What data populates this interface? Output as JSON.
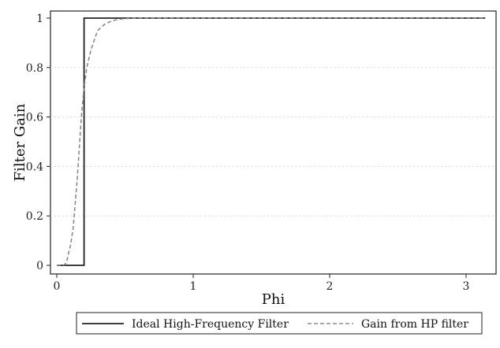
{
  "chart_data": {
    "type": "line",
    "xlabel": "Phi",
    "ylabel": "Filter Gain",
    "xlim": [
      0,
      3.14
    ],
    "ylim": [
      0,
      1
    ],
    "xticks": [
      "0",
      "1",
      "2",
      "3"
    ],
    "yticks": [
      "0",
      "0.2",
      "0.4",
      "0.6",
      "0.8",
      "1"
    ],
    "grid": "horizontal",
    "legend_position": "bottom",
    "series": [
      {
        "name": "Ideal High-Frequency Filter",
        "style": "solid",
        "color": "#222222",
        "x": [
          0.0,
          0.19,
          0.19,
          0.2,
          0.2,
          3.14
        ],
        "y": [
          0.0,
          0.0,
          0.0,
          0.0,
          1.0,
          1.0
        ]
      },
      {
        "name": "Gain from HP filter",
        "style": "dashed",
        "color": "#8a8a8a",
        "x": [
          0.0,
          0.03,
          0.05,
          0.07,
          0.1,
          0.12,
          0.15,
          0.18,
          0.2,
          0.22,
          0.25,
          0.28,
          0.3,
          0.35,
          0.4,
          0.45,
          0.5,
          0.6,
          0.8,
          1.0,
          3.14
        ],
        "y": [
          0.0,
          0.0,
          0.0,
          0.01,
          0.08,
          0.15,
          0.35,
          0.6,
          0.72,
          0.8,
          0.87,
          0.92,
          0.95,
          0.975,
          0.988,
          0.995,
          0.998,
          1.0,
          1.0,
          1.0,
          1.0
        ]
      }
    ]
  }
}
